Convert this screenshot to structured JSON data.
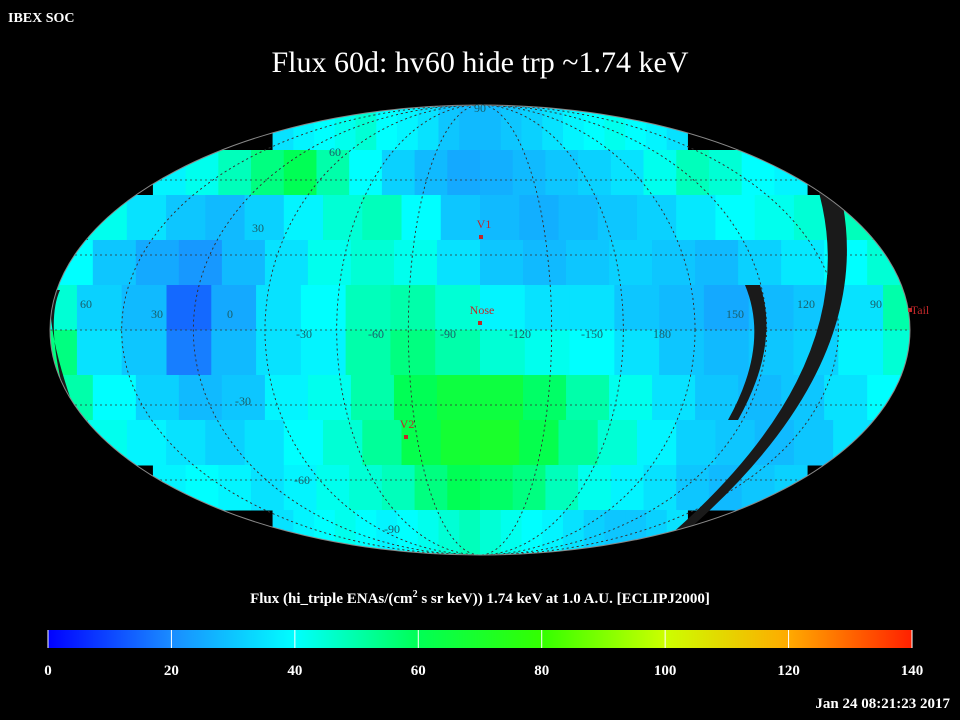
{
  "header": {
    "org": "IBEX SOC",
    "title": "Flux   60d: hv60 hide trp ~1.74 keV",
    "timestamp": "Jan 24 08:21:23 2017"
  },
  "map": {
    "longitude_labels": [
      60,
      30,
      0,
      -30,
      -60,
      -90,
      -120,
      -150,
      180,
      150,
      120,
      90
    ],
    "latitude_labels": [
      90,
      60,
      30,
      -30,
      -60,
      -90
    ],
    "markers": [
      {
        "label": "V1"
      },
      {
        "label": "Nose"
      },
      {
        "label": "V2"
      },
      {
        "label": "Tail"
      }
    ],
    "flux": [
      [
        35,
        38,
        40,
        42,
        45,
        40,
        38,
        35,
        30,
        28,
        28,
        30,
        32,
        35,
        38,
        40,
        42,
        40,
        38,
        35
      ],
      [
        38,
        42,
        48,
        55,
        60,
        50,
        40,
        32,
        28,
        25,
        26,
        28,
        30,
        32,
        35,
        42,
        48,
        45,
        40,
        38
      ],
      [
        42,
        35,
        30,
        28,
        32,
        38,
        45,
        48,
        40,
        30,
        28,
        26,
        28,
        30,
        32,
        36,
        40,
        42,
        45,
        48
      ],
      [
        40,
        30,
        25,
        22,
        28,
        35,
        42,
        45,
        42,
        35,
        30,
        28,
        30,
        32,
        30,
        28,
        32,
        36,
        40,
        45
      ],
      [
        45,
        32,
        28,
        15,
        25,
        35,
        40,
        48,
        50,
        45,
        38,
        35,
        35,
        30,
        28,
        25,
        28,
        30,
        35,
        50
      ],
      [
        55,
        35,
        30,
        18,
        28,
        35,
        38,
        50,
        55,
        50,
        45,
        42,
        40,
        35,
        30,
        28,
        30,
        32,
        38,
        45
      ],
      [
        50,
        40,
        32,
        28,
        30,
        38,
        42,
        50,
        60,
        65,
        65,
        58,
        50,
        42,
        35,
        30,
        28,
        30,
        35,
        40
      ],
      [
        42,
        38,
        35,
        32,
        35,
        40,
        45,
        52,
        62,
        68,
        70,
        62,
        52,
        45,
        38,
        32,
        30,
        28,
        30,
        35
      ],
      [
        38,
        40,
        38,
        35,
        38,
        42,
        45,
        48,
        55,
        60,
        58,
        55,
        48,
        42,
        38,
        35,
        30,
        28,
        30,
        32
      ],
      [
        35,
        38,
        40,
        42,
        40,
        38,
        40,
        42,
        45,
        48,
        45,
        42,
        40,
        38,
        35,
        32,
        30,
        30,
        32,
        35
      ]
    ]
  },
  "colorbar": {
    "label_parts": [
      "Flux (hi_triple ENAs/(cm",
      "2",
      " s sr keV))  1.74 keV at 1.0 A.U. [ECLIPJ2000]"
    ],
    "ticks": [
      0,
      20,
      40,
      60,
      80,
      100,
      120,
      140
    ],
    "colors": [
      "#0000ff",
      "#1a8cff",
      "#00ffff",
      "#00ff55",
      "#33ff00",
      "#ccff00",
      "#ffaa00",
      "#ff2000"
    ]
  }
}
